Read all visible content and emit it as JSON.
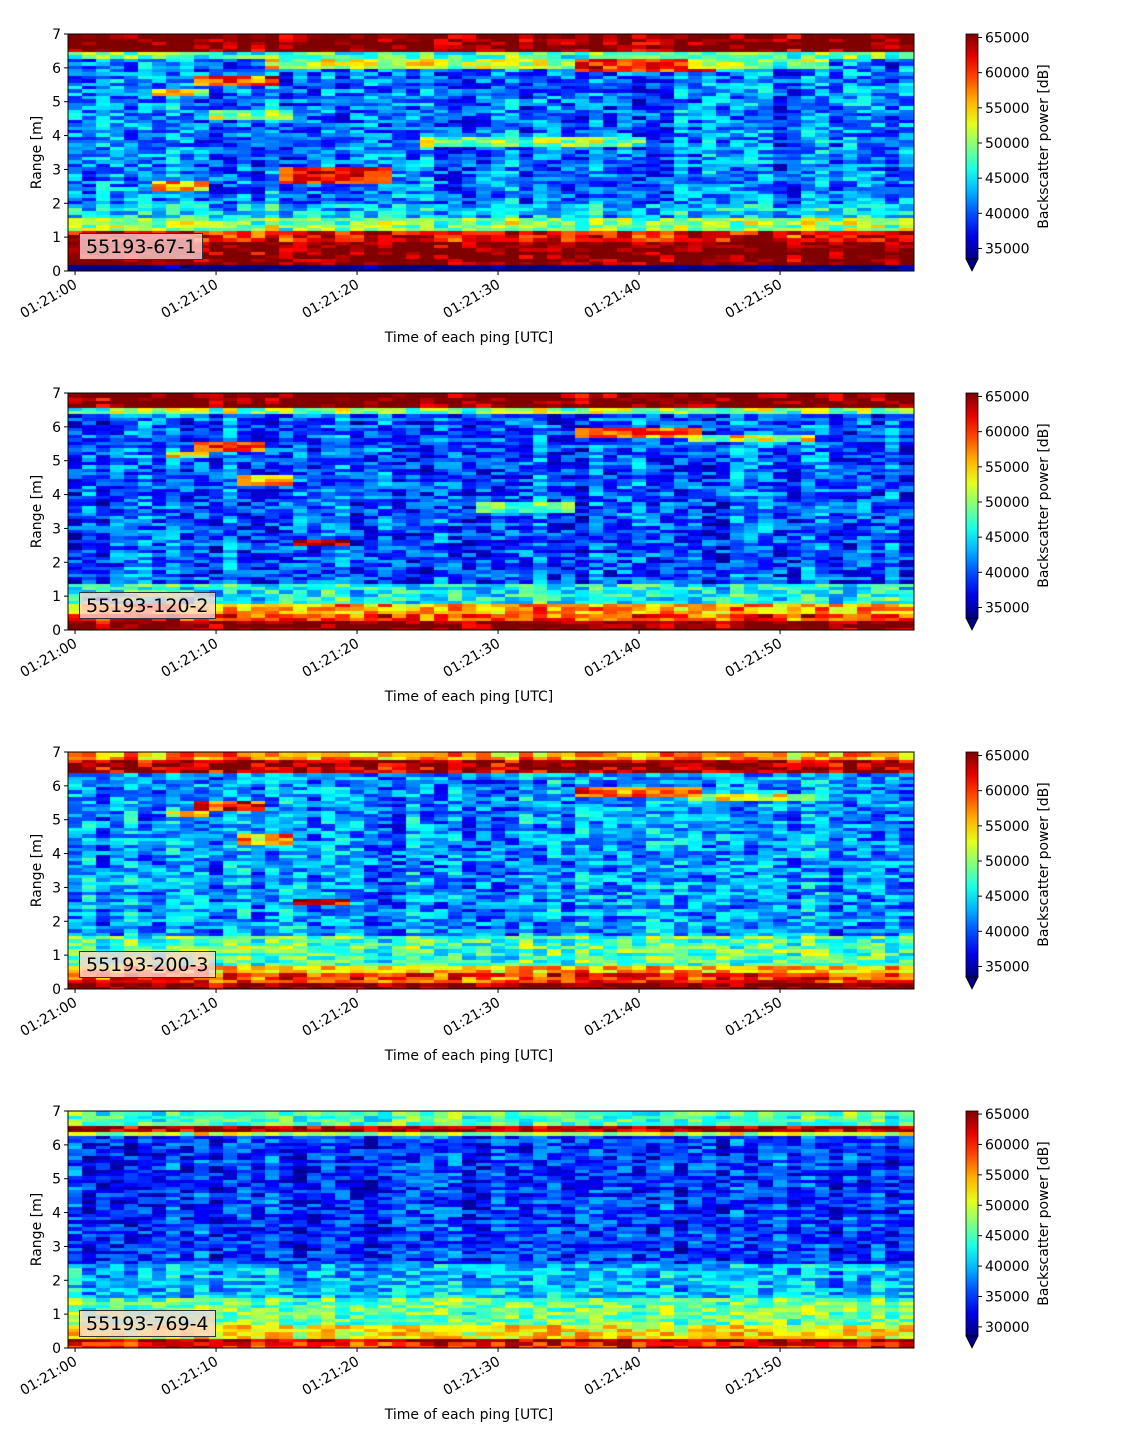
{
  "chart_data": [
    {
      "type": "heatmap",
      "panel_label": "55193-67-1",
      "xlabel": "Time of each ping [UTC]",
      "ylabel": "Range [m]",
      "colorbar_label": "Backscatter power [dB]",
      "x_ticks": [
        "01:21:00",
        "01:21:10",
        "01:21:20",
        "01:21:30",
        "01:21:40",
        "01:21:50"
      ],
      "x_range_seconds": [
        -0.5,
        59.5
      ],
      "y_ticks": [
        0,
        1,
        2,
        3,
        4,
        5,
        6,
        7
      ],
      "y_range": [
        0,
        7
      ],
      "colorbar_ticks": [
        35000,
        40000,
        45000,
        50000,
        55000,
        60000,
        65000
      ],
      "clim": [
        33500,
        65500
      ],
      "colormap": "jet",
      "colorbar_extend": "min",
      "bands": [
        {
          "y": [
            0.0,
            0.25
          ],
          "value": 31000
        },
        {
          "y": [
            0.25,
            0.95
          ],
          "value": 66000
        },
        {
          "y": [
            0.95,
            1.2
          ],
          "value": 62000
        },
        {
          "y": [
            1.2,
            1.6
          ],
          "value": 50000
        },
        {
          "y": [
            1.6,
            2.0
          ],
          "value": 44000
        },
        {
          "y": [
            2.0,
            6.35
          ],
          "value": 41000
        },
        {
          "y": [
            6.35,
            6.55
          ],
          "value": 48000
        },
        {
          "y": [
            6.55,
            7.0
          ],
          "value": 66000
        }
      ],
      "features": [
        {
          "t": [
            9,
            14
          ],
          "y": [
            5.55,
            5.85
          ],
          "value": 60000
        },
        {
          "t": [
            6,
            9
          ],
          "y": [
            5.2,
            5.4
          ],
          "value": 52000
        },
        {
          "t": [
            10,
            15
          ],
          "y": [
            4.55,
            4.85
          ],
          "value": 52000
        },
        {
          "t": [
            6,
            9
          ],
          "y": [
            2.45,
            2.7
          ],
          "value": 55000
        },
        {
          "t": [
            15,
            22
          ],
          "y": [
            2.65,
            3.1
          ],
          "value": 62000
        },
        {
          "t": [
            25,
            40
          ],
          "y": [
            3.75,
            4.0
          ],
          "value": 50000
        },
        {
          "t": [
            14,
            36
          ],
          "y": [
            6.0,
            6.3
          ],
          "value": 52000
        },
        {
          "t": [
            36,
            45
          ],
          "y": [
            5.95,
            6.3
          ],
          "value": 61000
        },
        {
          "t": [
            44,
            53
          ],
          "y": [
            6.0,
            6.3
          ],
          "value": 50000
        }
      ]
    },
    {
      "type": "heatmap",
      "panel_label": "55193-120-2",
      "xlabel": "Time of each ping [UTC]",
      "ylabel": "Range [m]",
      "colorbar_label": "Backscatter power [dB]",
      "x_ticks": [
        "01:21:00",
        "01:21:10",
        "01:21:20",
        "01:21:30",
        "01:21:40",
        "01:21:50"
      ],
      "x_range_seconds": [
        -0.5,
        59.5
      ],
      "y_ticks": [
        0,
        1,
        2,
        3,
        4,
        5,
        6,
        7
      ],
      "y_range": [
        0,
        7
      ],
      "colorbar_ticks": [
        35000,
        40000,
        45000,
        50000,
        55000,
        60000,
        65000
      ],
      "clim": [
        33500,
        65500
      ],
      "colormap": "jet",
      "colorbar_extend": "min",
      "bands": [
        {
          "y": [
            0.0,
            0.3
          ],
          "value": 66000
        },
        {
          "y": [
            0.3,
            0.55
          ],
          "value": 60000
        },
        {
          "y": [
            0.55,
            0.8
          ],
          "value": 56000
        },
        {
          "y": [
            0.8,
            1.4
          ],
          "value": 46000
        },
        {
          "y": [
            1.4,
            6.4
          ],
          "value": 40000
        },
        {
          "y": [
            6.4,
            6.6
          ],
          "value": 50000
        },
        {
          "y": [
            6.6,
            7.0
          ],
          "value": 66000
        }
      ],
      "features": [
        {
          "t": [
            9,
            13
          ],
          "y": [
            5.35,
            5.55
          ],
          "value": 61000
        },
        {
          "t": [
            7,
            9
          ],
          "y": [
            5.1,
            5.3
          ],
          "value": 52000
        },
        {
          "t": [
            12,
            15
          ],
          "y": [
            4.35,
            4.55
          ],
          "value": 56000
        },
        {
          "t": [
            16,
            19
          ],
          "y": [
            2.5,
            2.7
          ],
          "value": 62000
        },
        {
          "t": [
            29,
            35
          ],
          "y": [
            3.55,
            3.75
          ],
          "value": 48000
        },
        {
          "t": [
            36,
            44
          ],
          "y": [
            5.75,
            5.95
          ],
          "value": 58000
        },
        {
          "t": [
            44,
            52
          ],
          "y": [
            5.65,
            5.85
          ],
          "value": 52000
        }
      ]
    },
    {
      "type": "heatmap",
      "panel_label": "55193-200-3",
      "xlabel": "Time of each ping [UTC]",
      "ylabel": "Range [m]",
      "colorbar_label": "Backscatter power [dB]",
      "x_ticks": [
        "01:21:00",
        "01:21:10",
        "01:21:20",
        "01:21:30",
        "01:21:40",
        "01:21:50"
      ],
      "x_range_seconds": [
        -0.5,
        59.5
      ],
      "y_ticks": [
        0,
        1,
        2,
        3,
        4,
        5,
        6,
        7
      ],
      "y_range": [
        0,
        7
      ],
      "colorbar_ticks": [
        35000,
        40000,
        45000,
        50000,
        55000,
        60000,
        65000
      ],
      "clim": [
        33500,
        65500
      ],
      "colormap": "jet",
      "colorbar_extend": "min",
      "bands": [
        {
          "y": [
            0.0,
            0.25
          ],
          "value": 66000
        },
        {
          "y": [
            0.25,
            0.5
          ],
          "value": 60000
        },
        {
          "y": [
            0.5,
            0.75
          ],
          "value": 56000
        },
        {
          "y": [
            0.75,
            1.6
          ],
          "value": 48000
        },
        {
          "y": [
            1.6,
            6.4
          ],
          "value": 42000
        },
        {
          "y": [
            6.4,
            6.85
          ],
          "value": 64000
        },
        {
          "y": [
            6.85,
            7.0
          ],
          "value": 56000
        }
      ],
      "features": [
        {
          "t": [
            9,
            13
          ],
          "y": [
            5.35,
            5.55
          ],
          "value": 61000
        },
        {
          "t": [
            7,
            9
          ],
          "y": [
            5.1,
            5.3
          ],
          "value": 52000
        },
        {
          "t": [
            12,
            15
          ],
          "y": [
            4.35,
            4.55
          ],
          "value": 56000
        },
        {
          "t": [
            16,
            19
          ],
          "y": [
            2.5,
            2.7
          ],
          "value": 62000
        },
        {
          "t": [
            36,
            44
          ],
          "y": [
            5.75,
            5.95
          ],
          "value": 58000
        },
        {
          "t": [
            44,
            52
          ],
          "y": [
            5.65,
            5.85
          ],
          "value": 52000
        }
      ]
    },
    {
      "type": "heatmap",
      "panel_label": "55193-769-4",
      "xlabel": "Time of each ping [UTC]",
      "ylabel": "Range [m]",
      "colorbar_label": "Backscatter power [dB]",
      "x_ticks": [
        "01:21:00",
        "01:21:10",
        "01:21:20",
        "01:21:30",
        "01:21:40",
        "01:21:50"
      ],
      "x_range_seconds": [
        -0.5,
        59.5
      ],
      "y_ticks": [
        0,
        1,
        2,
        3,
        4,
        5,
        6,
        7
      ],
      "y_range": [
        0,
        7
      ],
      "colorbar_ticks": [
        30000,
        35000,
        40000,
        45000,
        50000,
        55000,
        60000,
        65000
      ],
      "clim": [
        28500,
        65500
      ],
      "colormap": "jet",
      "colorbar_extend": "min",
      "bands": [
        {
          "y": [
            0.0,
            0.18
          ],
          "value": 60000
        },
        {
          "y": [
            0.18,
            0.35
          ],
          "value": 64000
        },
        {
          "y": [
            0.35,
            0.7
          ],
          "value": 52000
        },
        {
          "y": [
            0.7,
            1.5
          ],
          "value": 46000
        },
        {
          "y": [
            1.5,
            2.5
          ],
          "value": 40000
        },
        {
          "y": [
            2.5,
            6.3
          ],
          "value": 35000
        },
        {
          "y": [
            6.3,
            6.45
          ],
          "value": 50000
        },
        {
          "y": [
            6.45,
            6.65
          ],
          "value": 64000
        },
        {
          "y": [
            6.65,
            7.0
          ],
          "value": 45000
        }
      ],
      "features": []
    }
  ]
}
